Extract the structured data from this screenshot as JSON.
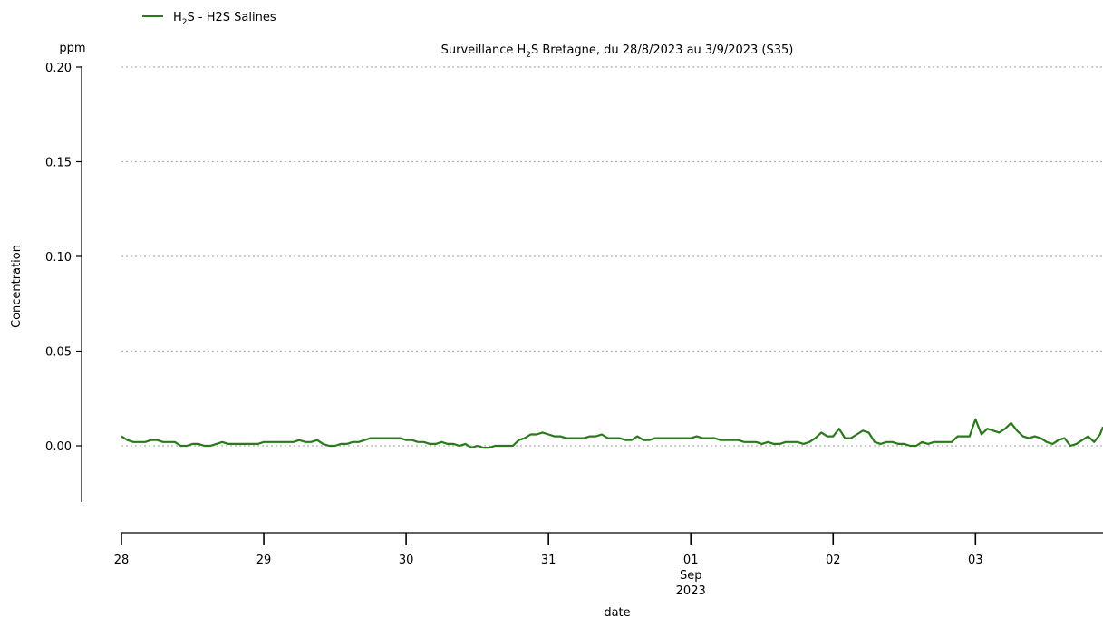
{
  "chart_data": {
    "type": "line",
    "title": {
      "prefix": "Surveillance H",
      "sub": "2",
      "suffix": "S Bretagne, du 28/8/2023 au 3/9/2023 (S35)"
    },
    "unit": "ppm",
    "ylabel": "Concentration",
    "xlabel": "date",
    "ylim": [
      -0.03,
      0.2
    ],
    "yticks": [
      0.0,
      0.05,
      0.1,
      0.15,
      0.2
    ],
    "ytick_labels": [
      "0.00",
      "0.05",
      "0.10",
      "0.15",
      "0.20"
    ],
    "xlim": [
      "2023-08-28T00:00",
      "2023-09-03T21:30"
    ],
    "xticks": [
      {
        "date": "2023-08-28",
        "label": "28",
        "sub": ""
      },
      {
        "date": "2023-08-29",
        "label": "29",
        "sub": ""
      },
      {
        "date": "2023-08-30",
        "label": "30",
        "sub": ""
      },
      {
        "date": "2023-08-31",
        "label": "31",
        "sub": ""
      },
      {
        "date": "2023-09-01",
        "label": "01",
        "sub": "Sep",
        "sub2": "2023"
      },
      {
        "date": "2023-09-02",
        "label": "02",
        "sub": ""
      },
      {
        "date": "2023-09-03",
        "label": "03",
        "sub": ""
      }
    ],
    "grid": "y-dotted",
    "legend_position": "top-left",
    "series": [
      {
        "name_prefix": "H",
        "name_sub": "2",
        "name_suffix": "S - H2S Salines",
        "color": "#2a7a1c",
        "points": [
          [
            "2023-08-28T00:00",
            0.005
          ],
          [
            "2023-08-28T01:00",
            0.003
          ],
          [
            "2023-08-28T02:00",
            0.002
          ],
          [
            "2023-08-28T03:00",
            0.002
          ],
          [
            "2023-08-28T04:00",
            0.002
          ],
          [
            "2023-08-28T05:00",
            0.003
          ],
          [
            "2023-08-28T06:00",
            0.003
          ],
          [
            "2023-08-28T07:00",
            0.002
          ],
          [
            "2023-08-28T08:00",
            0.002
          ],
          [
            "2023-08-28T09:00",
            0.002
          ],
          [
            "2023-08-28T10:00",
            0.0
          ],
          [
            "2023-08-28T11:00",
            0.0
          ],
          [
            "2023-08-28T12:00",
            0.001
          ],
          [
            "2023-08-28T13:00",
            0.001
          ],
          [
            "2023-08-28T14:00",
            0.0
          ],
          [
            "2023-08-28T15:00",
            0.0
          ],
          [
            "2023-08-28T16:00",
            0.001
          ],
          [
            "2023-08-28T17:00",
            0.002
          ],
          [
            "2023-08-28T18:00",
            0.001
          ],
          [
            "2023-08-28T19:00",
            0.001
          ],
          [
            "2023-08-28T20:00",
            0.001
          ],
          [
            "2023-08-28T21:00",
            0.001
          ],
          [
            "2023-08-28T22:00",
            0.001
          ],
          [
            "2023-08-28T23:00",
            0.001
          ],
          [
            "2023-08-29T00:00",
            0.002
          ],
          [
            "2023-08-29T01:00",
            0.002
          ],
          [
            "2023-08-29T02:00",
            0.002
          ],
          [
            "2023-08-29T03:00",
            0.002
          ],
          [
            "2023-08-29T04:00",
            0.002
          ],
          [
            "2023-08-29T05:00",
            0.002
          ],
          [
            "2023-08-29T06:00",
            0.003
          ],
          [
            "2023-08-29T07:00",
            0.002
          ],
          [
            "2023-08-29T08:00",
            0.002
          ],
          [
            "2023-08-29T09:00",
            0.003
          ],
          [
            "2023-08-29T10:00",
            0.001
          ],
          [
            "2023-08-29T11:00",
            0.0
          ],
          [
            "2023-08-29T12:00",
            0.0
          ],
          [
            "2023-08-29T13:00",
            0.001
          ],
          [
            "2023-08-29T14:00",
            0.001
          ],
          [
            "2023-08-29T15:00",
            0.002
          ],
          [
            "2023-08-29T16:00",
            0.002
          ],
          [
            "2023-08-29T17:00",
            0.003
          ],
          [
            "2023-08-29T18:00",
            0.004
          ],
          [
            "2023-08-29T19:00",
            0.004
          ],
          [
            "2023-08-29T20:00",
            0.004
          ],
          [
            "2023-08-29T21:00",
            0.004
          ],
          [
            "2023-08-29T22:00",
            0.004
          ],
          [
            "2023-08-29T23:00",
            0.004
          ],
          [
            "2023-08-30T00:00",
            0.003
          ],
          [
            "2023-08-30T01:00",
            0.003
          ],
          [
            "2023-08-30T02:00",
            0.002
          ],
          [
            "2023-08-30T03:00",
            0.002
          ],
          [
            "2023-08-30T04:00",
            0.001
          ],
          [
            "2023-08-30T05:00",
            0.001
          ],
          [
            "2023-08-30T06:00",
            0.002
          ],
          [
            "2023-08-30T07:00",
            0.001
          ],
          [
            "2023-08-30T08:00",
            0.001
          ],
          [
            "2023-08-30T09:00",
            0.0
          ],
          [
            "2023-08-30T10:00",
            0.001
          ],
          [
            "2023-08-30T11:00",
            -0.001
          ],
          [
            "2023-08-30T12:00",
            0.0
          ],
          [
            "2023-08-30T13:00",
            -0.001
          ],
          [
            "2023-08-30T14:00",
            -0.001
          ],
          [
            "2023-08-30T15:00",
            0.0
          ],
          [
            "2023-08-30T16:00",
            0.0
          ],
          [
            "2023-08-30T17:00",
            0.0
          ],
          [
            "2023-08-30T18:00",
            0.0
          ],
          [
            "2023-08-30T19:00",
            0.003
          ],
          [
            "2023-08-30T20:00",
            0.004
          ],
          [
            "2023-08-30T21:00",
            0.006
          ],
          [
            "2023-08-30T22:00",
            0.006
          ],
          [
            "2023-08-30T23:00",
            0.007
          ],
          [
            "2023-08-31T00:00",
            0.006
          ],
          [
            "2023-08-31T01:00",
            0.005
          ],
          [
            "2023-08-31T02:00",
            0.005
          ],
          [
            "2023-08-31T03:00",
            0.004
          ],
          [
            "2023-08-31T04:00",
            0.004
          ],
          [
            "2023-08-31T05:00",
            0.004
          ],
          [
            "2023-08-31T06:00",
            0.004
          ],
          [
            "2023-08-31T07:00",
            0.005
          ],
          [
            "2023-08-31T08:00",
            0.005
          ],
          [
            "2023-08-31T09:00",
            0.006
          ],
          [
            "2023-08-31T10:00",
            0.004
          ],
          [
            "2023-08-31T11:00",
            0.004
          ],
          [
            "2023-08-31T12:00",
            0.004
          ],
          [
            "2023-08-31T13:00",
            0.003
          ],
          [
            "2023-08-31T14:00",
            0.003
          ],
          [
            "2023-08-31T15:00",
            0.005
          ],
          [
            "2023-08-31T16:00",
            0.003
          ],
          [
            "2023-08-31T17:00",
            0.003
          ],
          [
            "2023-08-31T18:00",
            0.004
          ],
          [
            "2023-08-31T19:00",
            0.004
          ],
          [
            "2023-08-31T20:00",
            0.004
          ],
          [
            "2023-08-31T21:00",
            0.004
          ],
          [
            "2023-08-31T22:00",
            0.004
          ],
          [
            "2023-08-31T23:00",
            0.004
          ],
          [
            "2023-09-01T00:00",
            0.004
          ],
          [
            "2023-09-01T01:00",
            0.005
          ],
          [
            "2023-09-01T02:00",
            0.004
          ],
          [
            "2023-09-01T03:00",
            0.004
          ],
          [
            "2023-09-01T04:00",
            0.004
          ],
          [
            "2023-09-01T05:00",
            0.003
          ],
          [
            "2023-09-01T06:00",
            0.003
          ],
          [
            "2023-09-01T07:00",
            0.003
          ],
          [
            "2023-09-01T08:00",
            0.003
          ],
          [
            "2023-09-01T09:00",
            0.002
          ],
          [
            "2023-09-01T10:00",
            0.002
          ],
          [
            "2023-09-01T11:00",
            0.002
          ],
          [
            "2023-09-01T12:00",
            0.001
          ],
          [
            "2023-09-01T13:00",
            0.002
          ],
          [
            "2023-09-01T14:00",
            0.001
          ],
          [
            "2023-09-01T15:00",
            0.001
          ],
          [
            "2023-09-01T16:00",
            0.002
          ],
          [
            "2023-09-01T17:00",
            0.002
          ],
          [
            "2023-09-01T18:00",
            0.002
          ],
          [
            "2023-09-01T19:00",
            0.001
          ],
          [
            "2023-09-01T20:00",
            0.002
          ],
          [
            "2023-09-01T21:00",
            0.004
          ],
          [
            "2023-09-01T22:00",
            0.007
          ],
          [
            "2023-09-01T23:00",
            0.005
          ],
          [
            "2023-09-02T00:00",
            0.005
          ],
          [
            "2023-09-02T01:00",
            0.009
          ],
          [
            "2023-09-02T02:00",
            0.004
          ],
          [
            "2023-09-02T03:00",
            0.004
          ],
          [
            "2023-09-02T04:00",
            0.006
          ],
          [
            "2023-09-02T05:00",
            0.008
          ],
          [
            "2023-09-02T06:00",
            0.007
          ],
          [
            "2023-09-02T07:00",
            0.002
          ],
          [
            "2023-09-02T08:00",
            0.001
          ],
          [
            "2023-09-02T09:00",
            0.002
          ],
          [
            "2023-09-02T10:00",
            0.002
          ],
          [
            "2023-09-02T11:00",
            0.001
          ],
          [
            "2023-09-02T12:00",
            0.001
          ],
          [
            "2023-09-02T13:00",
            0.0
          ],
          [
            "2023-09-02T14:00",
            0.0
          ],
          [
            "2023-09-02T15:00",
            0.002
          ],
          [
            "2023-09-02T16:00",
            0.001
          ],
          [
            "2023-09-02T17:00",
            0.002
          ],
          [
            "2023-09-02T18:00",
            0.002
          ],
          [
            "2023-09-02T19:00",
            0.002
          ],
          [
            "2023-09-02T20:00",
            0.002
          ],
          [
            "2023-09-02T21:00",
            0.005
          ],
          [
            "2023-09-02T22:00",
            0.005
          ],
          [
            "2023-09-02T23:00",
            0.005
          ],
          [
            "2023-09-03T00:00",
            0.014
          ],
          [
            "2023-09-03T01:00",
            0.006
          ],
          [
            "2023-09-03T02:00",
            0.009
          ],
          [
            "2023-09-03T03:00",
            0.008
          ],
          [
            "2023-09-03T04:00",
            0.007
          ],
          [
            "2023-09-03T05:00",
            0.009
          ],
          [
            "2023-09-03T06:00",
            0.012
          ],
          [
            "2023-09-03T07:00",
            0.008
          ],
          [
            "2023-09-03T08:00",
            0.005
          ],
          [
            "2023-09-03T09:00",
            0.004
          ],
          [
            "2023-09-03T10:00",
            0.005
          ],
          [
            "2023-09-03T11:00",
            0.004
          ],
          [
            "2023-09-03T12:00",
            0.002
          ],
          [
            "2023-09-03T13:00",
            0.001
          ],
          [
            "2023-09-03T14:00",
            0.003
          ],
          [
            "2023-09-03T15:00",
            0.004
          ],
          [
            "2023-09-03T16:00",
            0.0
          ],
          [
            "2023-09-03T17:00",
            0.001
          ],
          [
            "2023-09-03T18:00",
            0.003
          ],
          [
            "2023-09-03T19:00",
            0.005
          ],
          [
            "2023-09-03T20:00",
            0.002
          ],
          [
            "2023-09-03T21:00",
            0.006
          ],
          [
            "2023-09-03T21:30",
            0.01
          ]
        ]
      }
    ]
  }
}
